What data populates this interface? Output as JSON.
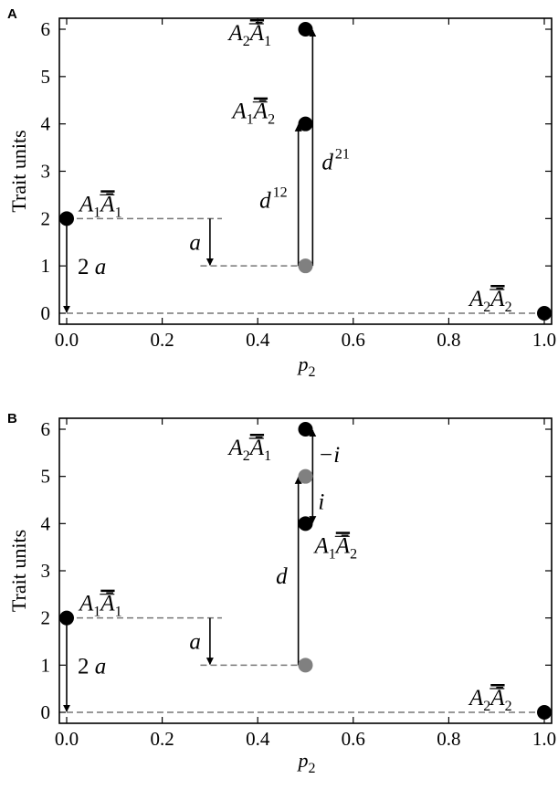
{
  "chart_data": [
    {
      "panel": "A",
      "type": "scatter",
      "xlabel": "p",
      "xlabel_sub": "2",
      "ylabel": "Trait units",
      "xlim": [
        0,
        1
      ],
      "ylim": [
        0,
        6
      ],
      "xticks": [
        "0.0",
        "0.2",
        "0.4",
        "0.6",
        "0.8",
        "1.0"
      ],
      "yticks": [
        "0",
        "1",
        "2",
        "3",
        "4",
        "5",
        "6"
      ],
      "points": [
        {
          "label": "A1Ā1",
          "x": 0.0,
          "y": 2,
          "color": "#000000"
        },
        {
          "label": "A2Ā2",
          "x": 1.0,
          "y": 0,
          "color": "#000000"
        },
        {
          "label": "A1Ā2",
          "x": 0.5,
          "y": 4,
          "color": "#000000"
        },
        {
          "label": "A2Ā1",
          "x": 0.5,
          "y": 6,
          "color": "#000000"
        },
        {
          "label": "",
          "x": 0.5,
          "y": 1,
          "color": "#808080"
        }
      ],
      "annotations": [
        {
          "text": "2 a",
          "from": [
            0.0,
            2
          ],
          "to": [
            0.0,
            0
          ]
        },
        {
          "text": "a",
          "from": [
            0.3,
            2
          ],
          "to": [
            0.3,
            1
          ]
        },
        {
          "text": "d 12",
          "from": [
            0.485,
            1
          ],
          "to": [
            0.485,
            4
          ]
        },
        {
          "text": "d 21",
          "from": [
            0.515,
            1
          ],
          "to": [
            0.515,
            6
          ]
        }
      ]
    },
    {
      "panel": "B",
      "type": "scatter",
      "xlabel": "p",
      "xlabel_sub": "2",
      "ylabel": "Trait units",
      "xlim": [
        0,
        1
      ],
      "ylim": [
        0,
        6
      ],
      "xticks": [
        "0.0",
        "0.2",
        "0.4",
        "0.6",
        "0.8",
        "1.0"
      ],
      "yticks": [
        "0",
        "1",
        "2",
        "3",
        "4",
        "5",
        "6"
      ],
      "points": [
        {
          "label": "A1Ā1",
          "x": 0.0,
          "y": 2,
          "color": "#000000"
        },
        {
          "label": "A2Ā2",
          "x": 1.0,
          "y": 0,
          "color": "#000000"
        },
        {
          "label": "A2Ā1",
          "x": 0.5,
          "y": 6,
          "color": "#000000"
        },
        {
          "label": "A1Ā2",
          "x": 0.5,
          "y": 4,
          "color": "#000000"
        },
        {
          "label": "",
          "x": 0.5,
          "y": 5,
          "color": "#808080"
        },
        {
          "label": "",
          "x": 0.5,
          "y": 1,
          "color": "#808080"
        }
      ],
      "annotations": [
        {
          "text": "2 a",
          "from": [
            0.0,
            2
          ],
          "to": [
            0.0,
            0
          ]
        },
        {
          "text": "a",
          "from": [
            0.3,
            2
          ],
          "to": [
            0.3,
            1
          ]
        },
        {
          "text": "d",
          "from": [
            0.485,
            1
          ],
          "to": [
            0.485,
            5
          ]
        },
        {
          "text": "−i",
          "from": [
            0.515,
            5
          ],
          "to": [
            0.515,
            6
          ]
        },
        {
          "text": "i",
          "from": [
            0.515,
            5
          ],
          "to": [
            0.515,
            4
          ]
        }
      ]
    }
  ],
  "colors": {
    "point": "#000000",
    "midpoint": "#808080",
    "dash": "#777777"
  }
}
